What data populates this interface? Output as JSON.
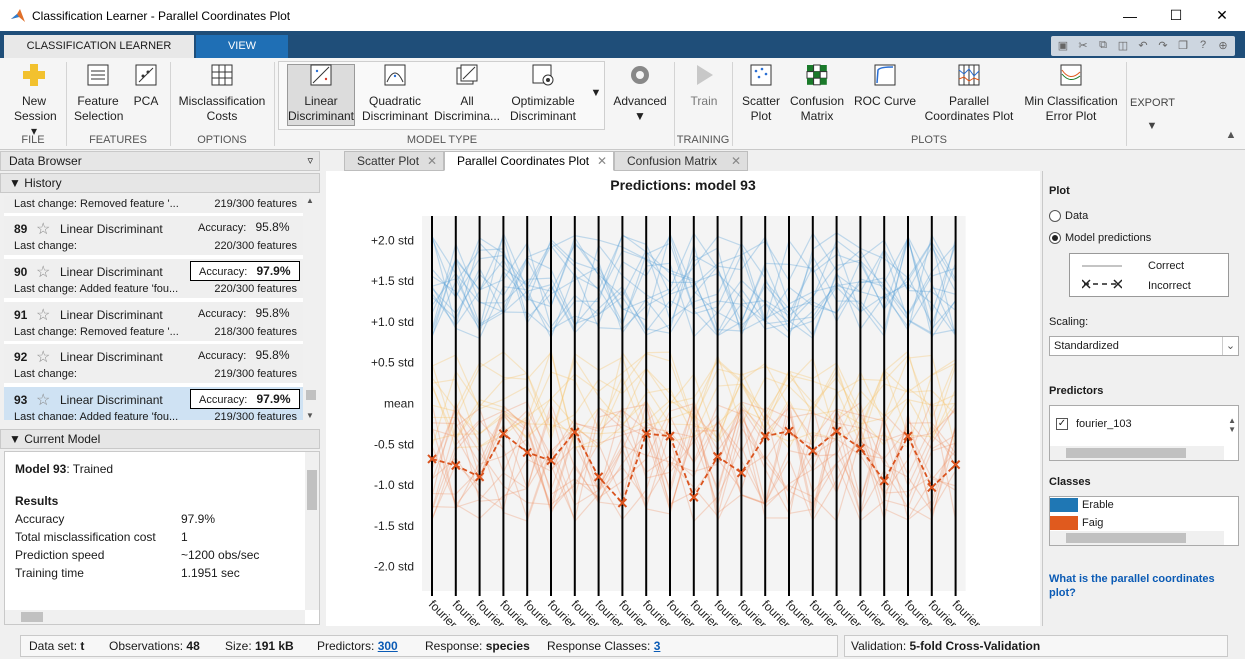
{
  "window": {
    "title": "Classification Learner - Parallel Coordinates Plot",
    "minimize_icon": "minimize-icon",
    "maximize_icon": "maximize-icon",
    "close_icon": "close-icon"
  },
  "ribbon_tabs": [
    {
      "label": "CLASSIFICATION LEARNER",
      "active": true
    },
    {
      "label": "VIEW",
      "active": false
    }
  ],
  "ribbon": {
    "new_session": "New\nSession",
    "feature_selection": "Feature\nSelection",
    "pca": "PCA",
    "misclassification_costs": "Misclassification\nCosts",
    "linear_discriminant": "Linear\nDiscriminant",
    "quadratic_discriminant": "Quadratic\nDiscriminant",
    "all_discriminants": "All\nDiscrimina...",
    "optimizable_discriminant": "Optimizable\nDiscriminant",
    "advanced": "Advanced",
    "train": "Train",
    "scatter_plot": "Scatter\nPlot",
    "confusion_matrix": "Confusion\nMatrix",
    "roc_curve": "ROC Curve",
    "parallel_coordinates_plot": "Parallel\nCoordinates Plot",
    "min_classification_error_plot": "Min Classification\nError Plot",
    "export": "EXPORT",
    "groups": {
      "file": "FILE",
      "features": "FEATURES",
      "options": "OPTIONS",
      "model_type": "MODEL TYPE",
      "training": "TRAINING",
      "plots": "PLOTS"
    }
  },
  "data_browser": {
    "title": "Data Browser",
    "history_label": "History",
    "current_model_label": "Current Model",
    "partial_top": {
      "last_change": "Last change:   Removed feature '...",
      "features": "219/300 features"
    },
    "history": [
      {
        "num": "89",
        "name": "Linear Discriminant",
        "accuracy_label": "Accuracy:",
        "accuracy": "95.8%",
        "boxed": false,
        "last_change": "Last change:",
        "features": "220/300 features",
        "selected": false
      },
      {
        "num": "90",
        "name": "Linear Discriminant",
        "accuracy_label": "Accuracy:",
        "accuracy": "97.9%",
        "boxed": true,
        "last_change": "Last change:   Added feature 'fou...",
        "features": "220/300 features",
        "selected": false
      },
      {
        "num": "91",
        "name": "Linear Discriminant",
        "accuracy_label": "Accuracy:",
        "accuracy": "95.8%",
        "boxed": false,
        "last_change": "Last change:   Removed feature '...",
        "features": "218/300 features",
        "selected": false
      },
      {
        "num": "92",
        "name": "Linear Discriminant",
        "accuracy_label": "Accuracy:",
        "accuracy": "95.8%",
        "boxed": false,
        "last_change": "Last change:",
        "features": "219/300 features",
        "selected": false
      },
      {
        "num": "93",
        "name": "Linear Discriminant",
        "accuracy_label": "Accuracy:",
        "accuracy": "97.9%",
        "boxed": true,
        "last_change": "Last change:   Added feature 'fou...",
        "features": "219/300 features",
        "selected": true
      }
    ],
    "current_model": {
      "model_name": "Model 93",
      "status": ": Trained",
      "results_label": "Results",
      "rows": [
        {
          "label": "Accuracy",
          "value": "97.9%"
        },
        {
          "label": "Total misclassification cost",
          "value": "1"
        },
        {
          "label": "Prediction speed",
          "value": "~1200 obs/sec"
        },
        {
          "label": "Training time",
          "value": "1.1951 sec"
        }
      ]
    }
  },
  "doc_tabs": [
    {
      "label": "Scatter Plot",
      "active": false
    },
    {
      "label": "Parallel Coordinates Plot",
      "active": true
    },
    {
      "label": "Confusion Matrix",
      "active": false
    }
  ],
  "chart_data": {
    "type": "line",
    "title": "Predictions: model 93",
    "y_ticks": [
      "+2.0 std",
      "+1.5 std",
      "+1.0 std",
      "+0.5 std",
      "mean",
      "-0.5 std",
      "-1.0 std",
      "-1.5 std",
      "-2.0 std"
    ],
    "ylim": [
      -2.3,
      2.3
    ],
    "categories": [
      "fourier_3",
      "fourier_5",
      "fourier_6",
      "fourier_10",
      "fourier_11",
      "fourier_13",
      "fourier_14",
      "fourier_15",
      "fourier_16",
      "fourier_17",
      "fourier_18",
      "fourier_24",
      "fourier_26",
      "fourier_30",
      "fourier_32",
      "fourier_60",
      "fourier_72",
      "fourier_78",
      "fourier_79",
      "fourier_80",
      "fourier_83",
      "fourier_101",
      "fourier_103"
    ],
    "series": [
      {
        "name": "Incorrect",
        "values": [
          -0.68,
          -0.76,
          -0.9,
          -0.37,
          -0.6,
          -0.7,
          -0.35,
          -0.9,
          -1.22,
          -0.37,
          -0.4,
          -1.15,
          -0.65,
          -0.85,
          -0.4,
          -0.34,
          -0.58,
          -0.34,
          -0.55,
          -0.95,
          -0.4,
          -1.03,
          -0.75
        ]
      }
    ],
    "colors": {
      "class1": "#1f77b4",
      "class2": "#e05a1e",
      "mid": "#f5c26b"
    }
  },
  "right_panel": {
    "plot_label": "Plot",
    "option_data": "Data",
    "option_predictions": "Model predictions",
    "legend_correct": "Correct",
    "legend_incorrect": "Incorrect",
    "scaling_label": "Scaling:",
    "scaling_value": "Standardized",
    "predictors_label": "Predictors",
    "predictor_item": "fourier_103",
    "classes_label": "Classes",
    "classes": [
      {
        "name": "Erable",
        "color": "#1f77b4"
      },
      {
        "name": "Faig",
        "color": "#e05a1e"
      }
    ],
    "help_link": "What is the parallel coordinates plot?"
  },
  "status": {
    "dataset_label": "Data set:",
    "dataset_value": "t",
    "obs_label": "Observations:",
    "obs_value": "48",
    "size_label": "Size:",
    "size_value": "191 kB",
    "predictors_label": "Predictors:",
    "predictors_value": "300",
    "response_label": "Response:",
    "response_value": "species",
    "classes_label": "Response Classes:",
    "classes_value": "3",
    "validation_label": "Validation:",
    "validation_value": "5-fold Cross-Validation"
  }
}
